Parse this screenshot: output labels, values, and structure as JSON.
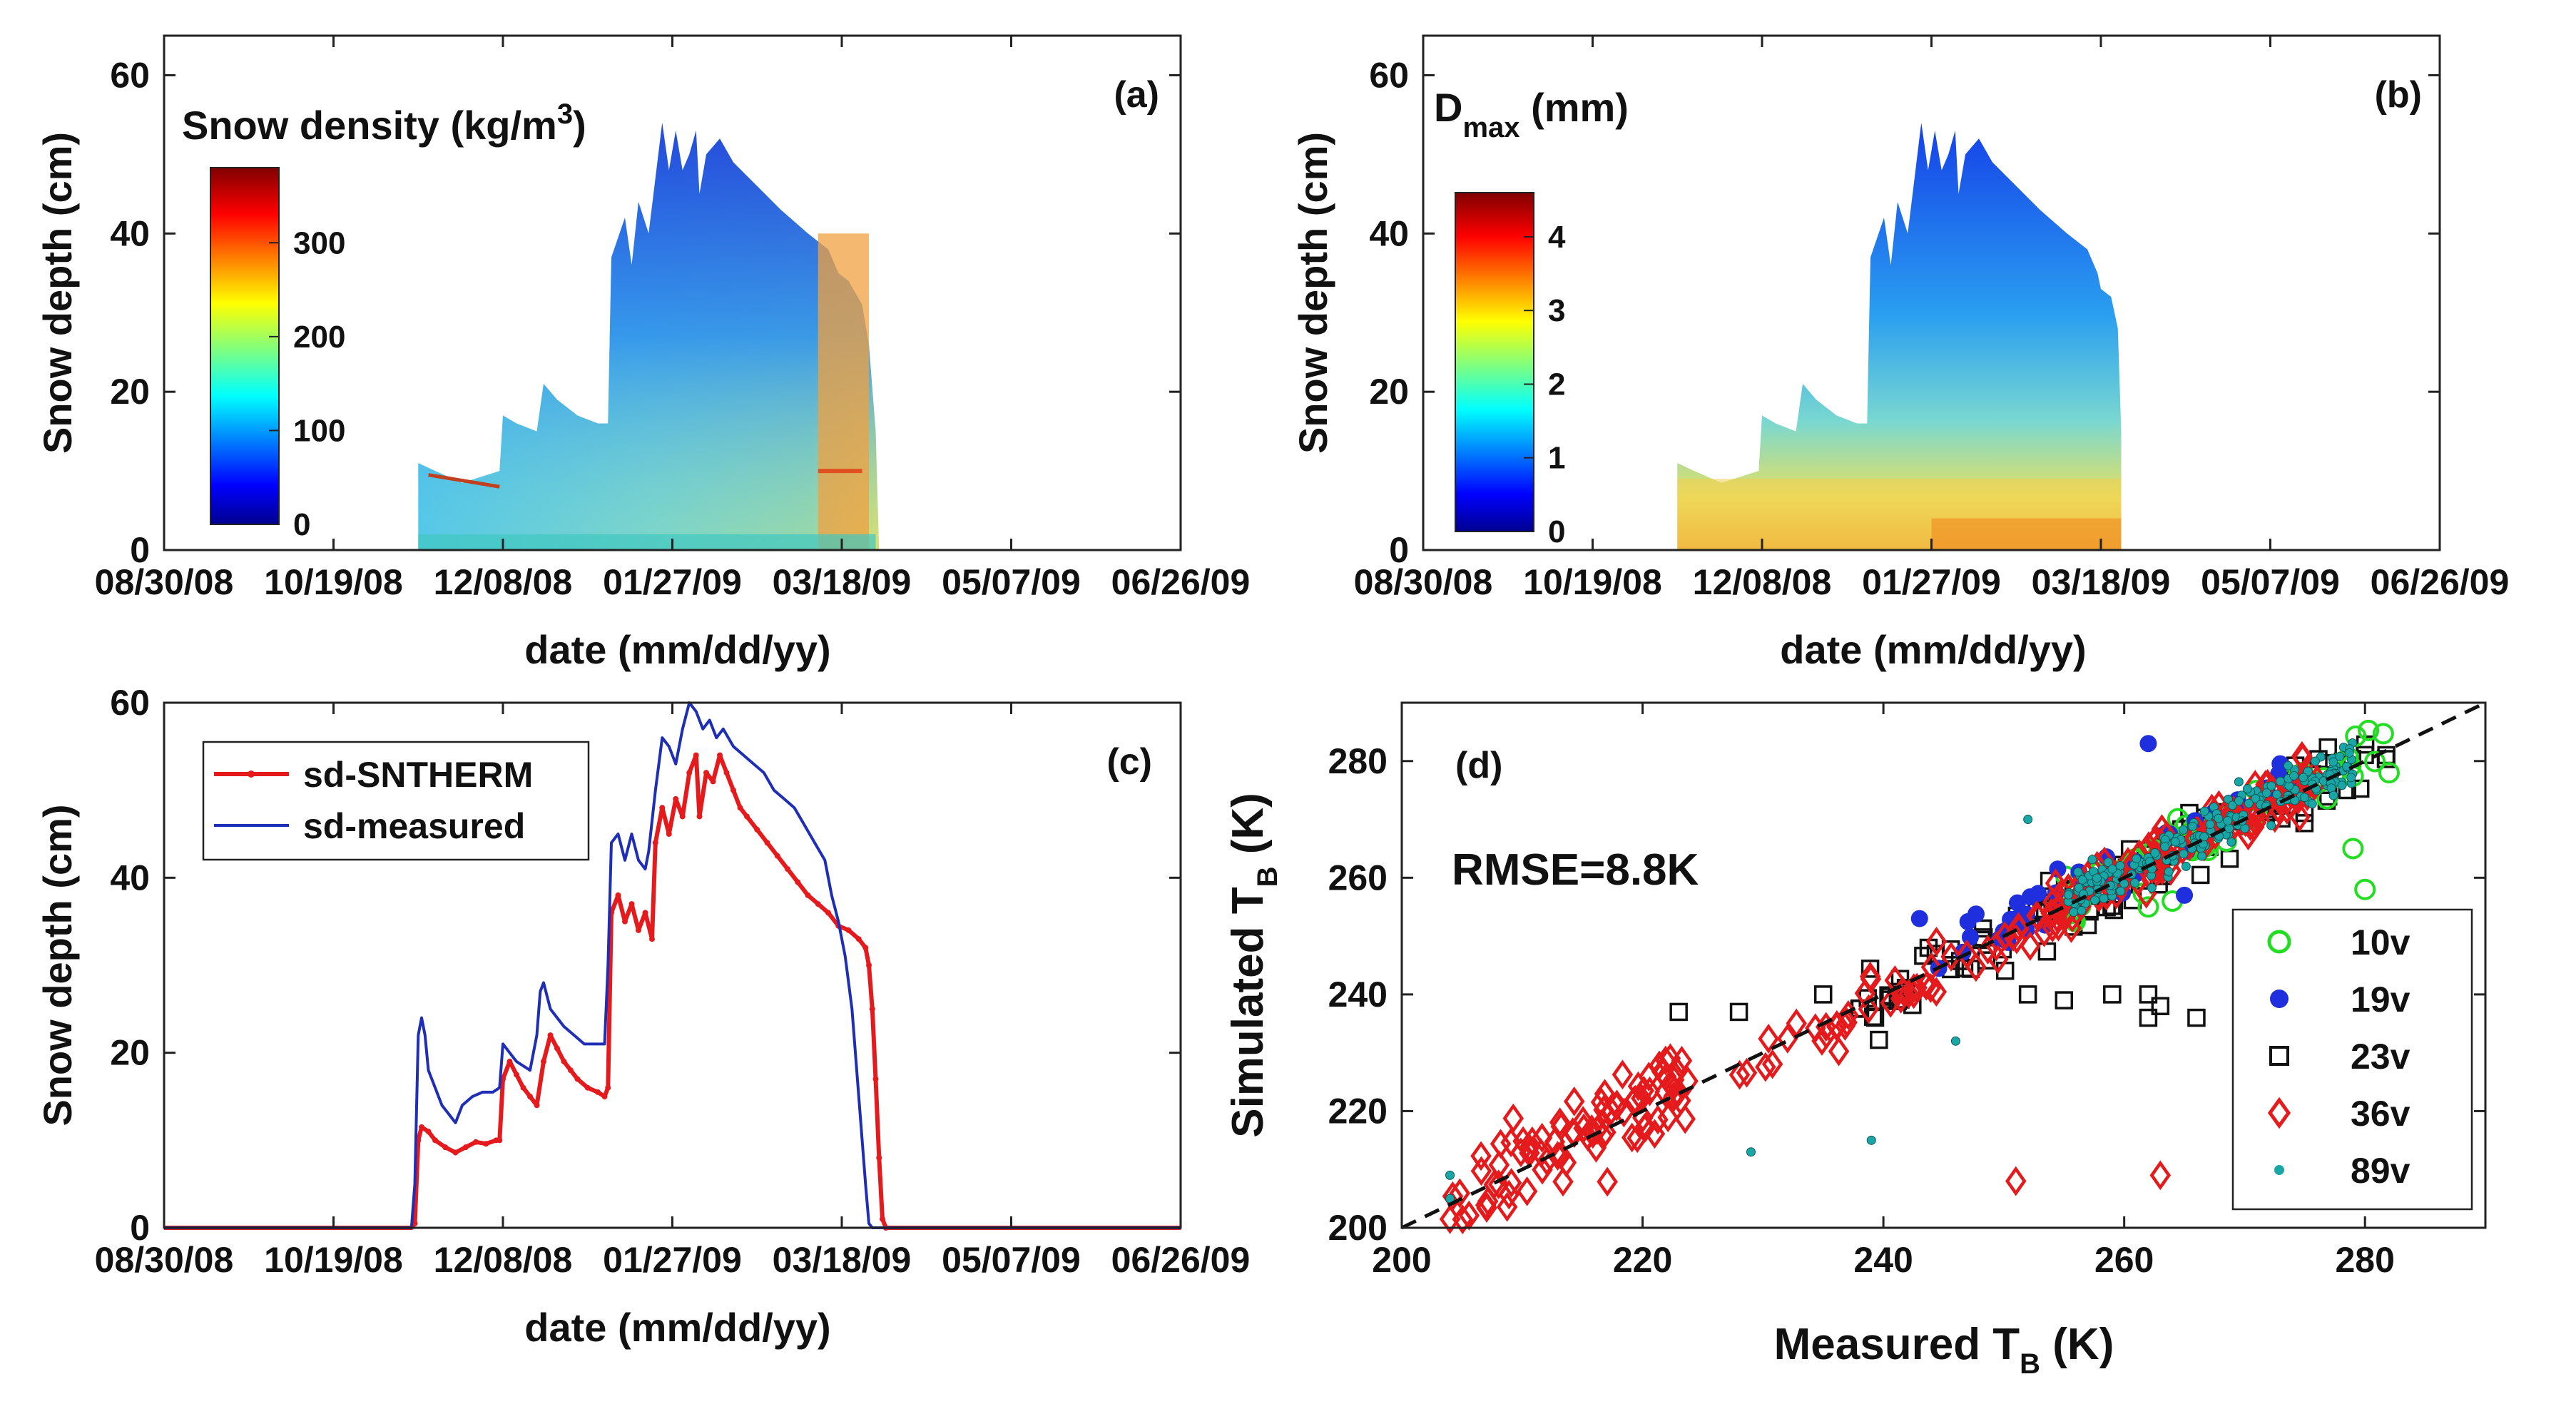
{
  "chart_data": [
    {
      "panel": "(a)",
      "type": "heatmap",
      "ylabel": "Snow depth (cm)",
      "xlabel": "date (mm/dd/yy)",
      "x_ticks": [
        "08/30/08",
        "10/19/08",
        "12/08/08",
        "01/27/09",
        "03/18/09",
        "05/07/09",
        "06/26/09"
      ],
      "y_ticks": [
        "0",
        "20",
        "40",
        "60"
      ],
      "ylim": [
        0,
        65
      ],
      "colorbar": {
        "title": "Snow density (kg/m",
        "title_sup": "3",
        "title_end": ")",
        "ticks": [
          "0",
          "100",
          "200",
          "300"
        ],
        "range": [
          0,
          380
        ]
      }
    },
    {
      "panel": "(b)",
      "type": "heatmap",
      "ylabel": "Snow depth (cm)",
      "xlabel": "date (mm/dd/yy)",
      "x_ticks": [
        "08/30/08",
        "10/19/08",
        "12/08/08",
        "01/27/09",
        "03/18/09",
        "05/07/09",
        "06/26/09"
      ],
      "y_ticks": [
        "0",
        "20",
        "40",
        "60"
      ],
      "ylim": [
        0,
        65
      ],
      "colorbar": {
        "title_main": "D",
        "title_sub": "max",
        "title_end": " (mm)",
        "ticks": [
          "0",
          "1",
          "2",
          "3",
          "4"
        ],
        "range": [
          0,
          4.6
        ]
      }
    },
    {
      "panel": "(c)",
      "type": "line",
      "ylabel": "Snow depth (cm)",
      "xlabel": "date (mm/dd/yy)",
      "x_ticks": [
        "08/30/08",
        "10/19/08",
        "12/08/08",
        "01/27/09",
        "03/18/09",
        "05/07/09",
        "06/26/09"
      ],
      "x_tick_days": [
        0,
        50,
        100,
        150,
        200,
        250,
        300
      ],
      "y_ticks": [
        "0",
        "20",
        "40",
        "60"
      ],
      "xlim_days": [
        0,
        300
      ],
      "ylim": [
        0,
        60
      ],
      "series": [
        {
          "name": "sd-SNTHERM",
          "color": "#e41a1c",
          "points": [
            [
              0,
              0
            ],
            [
              73,
              0
            ],
            [
              74,
              0.5
            ],
            [
              75,
              10
            ],
            [
              76,
              11.5
            ],
            [
              78,
              11
            ],
            [
              80,
              10
            ],
            [
              83,
              9.2
            ],
            [
              86,
              8.6
            ],
            [
              89,
              9.2
            ],
            [
              92,
              9.8
            ],
            [
              95,
              9.6
            ],
            [
              98,
              10
            ],
            [
              99,
              10
            ],
            [
              100,
              17
            ],
            [
              102,
              19
            ],
            [
              104,
              17.5
            ],
            [
              106,
              16
            ],
            [
              108,
              15
            ],
            [
              110,
              14
            ],
            [
              112,
              19
            ],
            [
              114,
              22
            ],
            [
              116,
              20.5
            ],
            [
              118,
              19
            ],
            [
              120,
              18
            ],
            [
              122,
              17
            ],
            [
              125,
              16
            ],
            [
              128,
              15.5
            ],
            [
              130,
              15
            ],
            [
              131,
              16
            ],
            [
              132,
              36
            ],
            [
              134,
              38
            ],
            [
              136,
              35
            ],
            [
              138,
              37
            ],
            [
              140,
              34
            ],
            [
              142,
              36
            ],
            [
              144,
              33
            ],
            [
              145,
              44
            ],
            [
              147,
              48
            ],
            [
              149,
              45
            ],
            [
              151,
              49
            ],
            [
              153,
              47
            ],
            [
              155,
              52
            ],
            [
              157,
              54
            ],
            [
              158,
              47
            ],
            [
              160,
              52
            ],
            [
              162,
              51
            ],
            [
              164,
              54
            ],
            [
              166,
              52
            ],
            [
              168,
              50
            ],
            [
              170,
              48
            ],
            [
              172,
              47
            ],
            [
              175,
              45.5
            ],
            [
              178,
              44
            ],
            [
              181,
              42.5
            ],
            [
              184,
              41
            ],
            [
              187,
              39.5
            ],
            [
              190,
              38
            ],
            [
              193,
              37
            ],
            [
              196,
              36
            ],
            [
              199,
              34.5
            ],
            [
              202,
              34
            ],
            [
              205,
              33
            ],
            [
              207,
              32
            ],
            [
              208,
              30
            ],
            [
              209,
              25
            ],
            [
              210,
              17
            ],
            [
              211,
              8
            ],
            [
              212,
              1
            ],
            [
              213,
              0
            ],
            [
              300,
              0
            ]
          ]
        },
        {
          "name": "sd-measured",
          "color": "#1f2fb5",
          "points": [
            [
              0,
              0
            ],
            [
              73,
              0
            ],
            [
              74,
              5
            ],
            [
              75,
              22
            ],
            [
              76,
              24
            ],
            [
              77,
              22
            ],
            [
              78,
              18
            ],
            [
              80,
              16
            ],
            [
              82,
              14
            ],
            [
              84,
              13
            ],
            [
              86,
              12
            ],
            [
              88,
              14
            ],
            [
              91,
              15
            ],
            [
              94,
              15.5
            ],
            [
              97,
              15.5
            ],
            [
              99,
              16
            ],
            [
              100,
              21
            ],
            [
              102,
              20
            ],
            [
              104,
              19
            ],
            [
              106,
              18.5
            ],
            [
              108,
              18
            ],
            [
              110,
              22
            ],
            [
              111,
              27
            ],
            [
              112,
              28
            ],
            [
              114,
              25
            ],
            [
              116,
              24
            ],
            [
              118,
              23
            ],
            [
              121,
              22
            ],
            [
              124,
              21
            ],
            [
              127,
              21
            ],
            [
              130,
              21
            ],
            [
              131,
              30
            ],
            [
              132,
              44
            ],
            [
              134,
              45
            ],
            [
              136,
              42
            ],
            [
              138,
              45
            ],
            [
              140,
              42
            ],
            [
              142,
              41
            ],
            [
              143,
              43
            ],
            [
              145,
              50
            ],
            [
              147,
              56
            ],
            [
              149,
              55
            ],
            [
              151,
              53
            ],
            [
              153,
              57
            ],
            [
              155,
              60
            ],
            [
              157,
              59
            ],
            [
              159,
              57
            ],
            [
              161,
              58
            ],
            [
              163,
              56
            ],
            [
              165,
              57
            ],
            [
              168,
              55
            ],
            [
              171,
              54
            ],
            [
              174,
              53
            ],
            [
              177,
              52
            ],
            [
              180,
              50
            ],
            [
              183,
              49
            ],
            [
              186,
              48
            ],
            [
              189,
              46
            ],
            [
              192,
              44
            ],
            [
              195,
              42
            ],
            [
              197,
              38
            ],
            [
              199,
              35
            ],
            [
              201,
              31
            ],
            [
              203,
              25
            ],
            [
              205,
              15
            ],
            [
              207,
              5
            ],
            [
              208,
              0.5
            ],
            [
              209,
              0
            ],
            [
              300,
              0
            ]
          ]
        }
      ],
      "legend": "top-left"
    },
    {
      "panel": "(d)",
      "type": "scatter",
      "xlabel": "Measured T",
      "xlabel_sub": "B",
      "xlabel_end": " (K)",
      "ylabel": "Simulated T",
      "ylabel_sub": "B",
      "ylabel_end": " (K)",
      "x_ticks": [
        "200",
        "220",
        "240",
        "260",
        "280"
      ],
      "y_ticks": [
        "200",
        "220",
        "240",
        "260",
        "280"
      ],
      "xlim": [
        200,
        290
      ],
      "ylim": [
        200,
        290
      ],
      "annotation": "RMSE=8.8K",
      "one_to_one_line": true,
      "series": [
        {
          "name": "10v",
          "color": "#22dd22",
          "marker": "circle-open"
        },
        {
          "name": "19v",
          "color": "#1f2fdd",
          "marker": "circle-filled"
        },
        {
          "name": "23v",
          "color": "#111111",
          "marker": "square-open"
        },
        {
          "name": "36v",
          "color": "#e41a1c",
          "marker": "diamond-open"
        },
        {
          "name": "89v",
          "color": "#1aa6a6",
          "marker": "dot"
        }
      ]
    }
  ]
}
